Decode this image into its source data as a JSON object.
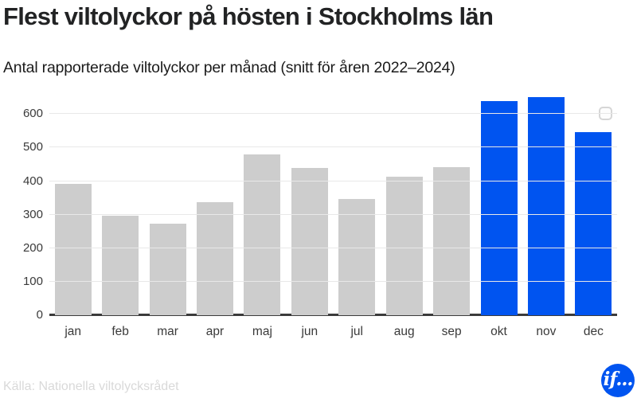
{
  "header": {
    "title": "Flest viltolyckor på hösten i Stockholms län",
    "subtitle": "Antal rapporterade viltolyckor per månad (snitt för åren 2022–2024)"
  },
  "chart_data": {
    "type": "bar",
    "title": "Flest viltolyckor på hösten i Stockholms län",
    "subtitle": "Antal rapporterade viltolyckor per månad (snitt för åren 2022–2024)",
    "xlabel": "",
    "ylabel": "",
    "categories": [
      "jan",
      "feb",
      "mar",
      "apr",
      "maj",
      "jun",
      "jul",
      "aug",
      "sep",
      "okt",
      "nov",
      "dec"
    ],
    "values": [
      392,
      297,
      272,
      336,
      480,
      439,
      346,
      413,
      441,
      638,
      650,
      547
    ],
    "highlighted_categories": [
      "okt",
      "nov",
      "dec"
    ],
    "yticks": [
      0,
      100,
      200,
      300,
      400,
      500,
      600
    ],
    "ylim": [
      0,
      660
    ],
    "grid": true,
    "legend": false,
    "bar_color_default": "#cdcdcd",
    "bar_color_highlight": "#0054f0"
  },
  "footer": {
    "source": "Källa: Nationella viltolycksrådet",
    "logo_text": "if..."
  },
  "colors": {
    "accent_blue": "#0054f0",
    "bar_gray": "#cdcdcd",
    "gridline": "#e8e8e8",
    "axis_line": "#3b3b3b",
    "tick_text": "#3a3a3a",
    "title_text": "#222324",
    "source_text": "#d9d9d9"
  }
}
